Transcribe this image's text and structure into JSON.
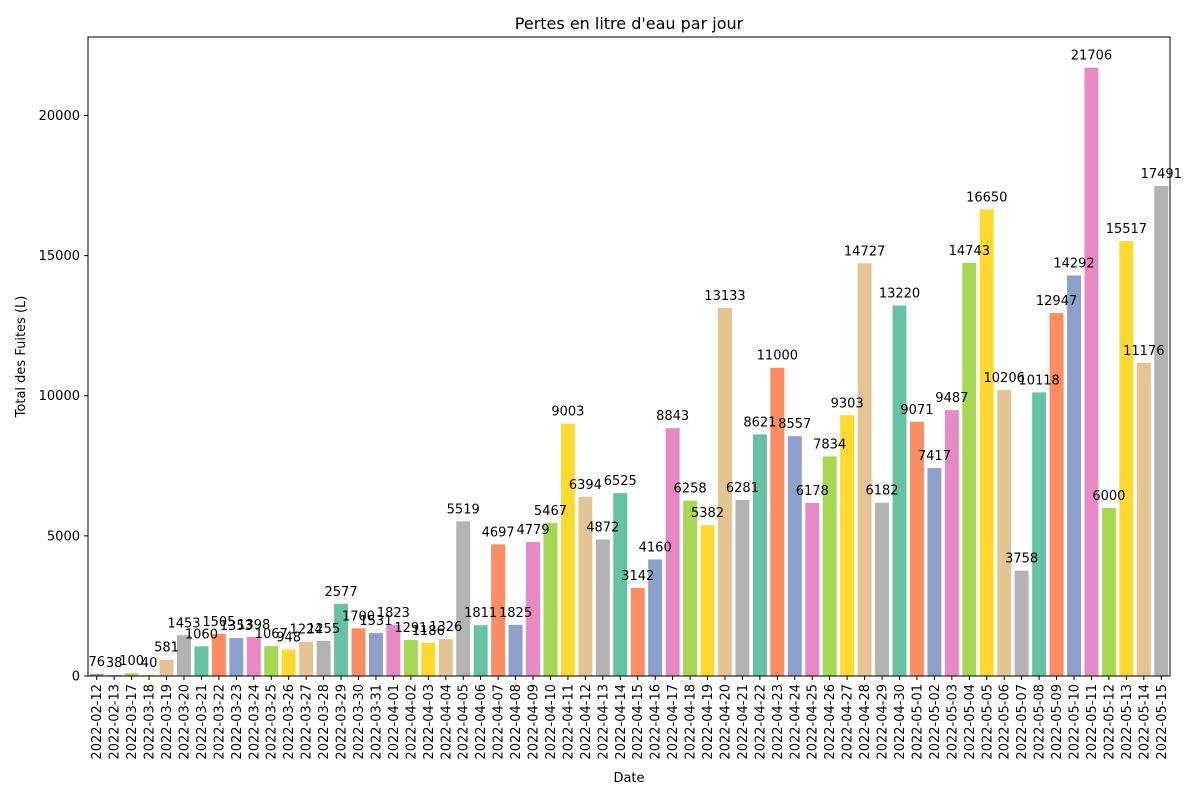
{
  "chart_data": {
    "type": "bar",
    "title": "Pertes en litre d'eau par jour",
    "xlabel": "Date",
    "ylabel": "Total des Fuites (L)",
    "ylim": [
      0,
      22800
    ],
    "yticks": [
      0,
      5000,
      10000,
      15000,
      20000
    ],
    "grid": false,
    "palette": [
      "#8da0cb",
      "#e78ac3",
      "#a6d854",
      "#ffd92f",
      "#e5c494",
      "#b3b3b3",
      "#66c2a5",
      "#fc8d62"
    ],
    "categories": [
      "2022-02-12",
      "2022-02-13",
      "2022-03-17",
      "2022-03-18",
      "2022-03-19",
      "2022-03-20",
      "2022-03-21",
      "2022-03-22",
      "2022-03-23",
      "2022-03-24",
      "2022-03-25",
      "2022-03-26",
      "2022-03-27",
      "2022-03-28",
      "2022-03-29",
      "2022-03-30",
      "2022-03-31",
      "2022-04-01",
      "2022-04-02",
      "2022-04-03",
      "2022-04-04",
      "2022-04-05",
      "2022-04-06",
      "2022-04-07",
      "2022-04-08",
      "2022-04-09",
      "2022-04-10",
      "2022-04-11",
      "2022-04-12",
      "2022-04-13",
      "2022-04-14",
      "2022-04-15",
      "2022-04-16",
      "2022-04-17",
      "2022-04-18",
      "2022-04-19",
      "2022-04-20",
      "2022-04-21",
      "2022-04-22",
      "2022-04-23",
      "2022-04-24",
      "2022-04-25",
      "2022-04-26",
      "2022-04-27",
      "2022-04-28",
      "2022-04-29",
      "2022-04-30",
      "2022-05-01",
      "2022-05-02",
      "2022-05-03",
      "2022-05-04",
      "2022-05-05",
      "2022-05-06",
      "2022-05-07",
      "2022-05-08",
      "2022-05-09",
      "2022-05-10",
      "2022-05-11",
      "2022-05-12",
      "2022-05-13",
      "2022-05-14",
      "2022-05-15"
    ],
    "values": [
      76,
      38,
      100,
      40,
      581,
      1453,
      1060,
      1505,
      1353,
      1398,
      1067,
      948,
      1224,
      1255,
      2577,
      1700,
      1531,
      1823,
      1291,
      1186,
      1326,
      5519,
      1811,
      4697,
      1825,
      4779,
      5467,
      9003,
      6394,
      4872,
      6525,
      3142,
      4160,
      8843,
      6258,
      5382,
      13133,
      6281,
      8621,
      11000,
      8557,
      6178,
      7834,
      9303,
      14727,
      6182,
      13220,
      9071,
      7417,
      9487,
      14743,
      16650,
      10206,
      3758,
      10118,
      12947,
      14292,
      21706,
      6000,
      15517,
      11176,
      17491
    ]
  }
}
